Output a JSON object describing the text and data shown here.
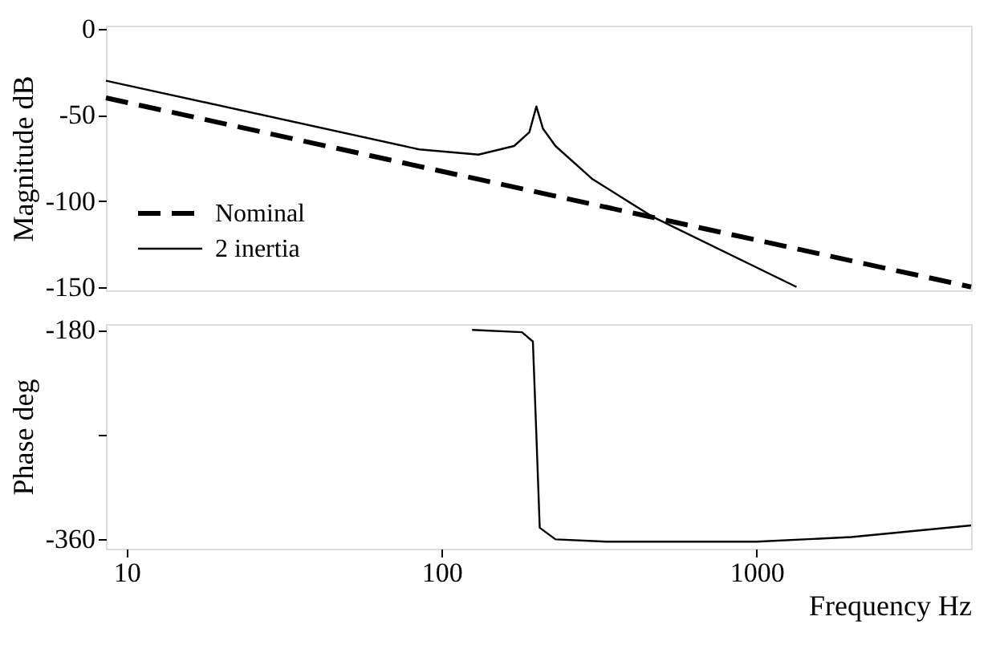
{
  "chart_data": [
    {
      "type": "line",
      "ylabel": "Magnitude dB",
      "xlim": [
        8.6,
        4800
      ],
      "ylim": [
        -152,
        2
      ],
      "yticks": [
        0,
        -50,
        -100,
        -150
      ],
      "log": "x",
      "tick_labels": "y",
      "grid": false,
      "legend": "bottom left",
      "series": [
        {
          "name": "Nominal",
          "color": "#000000",
          "line_style": "dashed",
          "x": [
            8.6,
            4800
          ],
          "values": [
            -40,
            -150
          ]
        },
        {
          "name": "2 inertia",
          "color": "#000000",
          "line_style": "solid",
          "x": [
            8.6,
            85,
            131,
            170,
            190,
            200,
            210,
            230,
            300,
            466,
            1340
          ],
          "values": [
            -30,
            -70,
            -73,
            -68,
            -60,
            -45,
            -58,
            -68,
            -87,
            -109,
            -150
          ]
        }
      ]
    },
    {
      "type": "line",
      "xlabel": "Frequency Hz",
      "ylabel": "Phase deg",
      "xlim": [
        8.6,
        4800
      ],
      "xticks": [
        10,
        100,
        1000
      ],
      "ylim": [
        -368,
        -175
      ],
      "yticks": [
        -180,
        {
          "value": -270,
          "label": null
        },
        -360
      ],
      "log": "x",
      "grid": false,
      "legend": false,
      "series": [
        {
          "color": "#000000",
          "line_style": "solid",
          "x": [
            125,
            180,
            195,
            200,
            205,
            230,
            335,
            1000,
            2000,
            4800
          ],
          "values": [
            -180,
            -182,
            -190,
            -270,
            -350,
            -360,
            -362,
            -362,
            -358,
            -348
          ]
        }
      ]
    }
  ]
}
